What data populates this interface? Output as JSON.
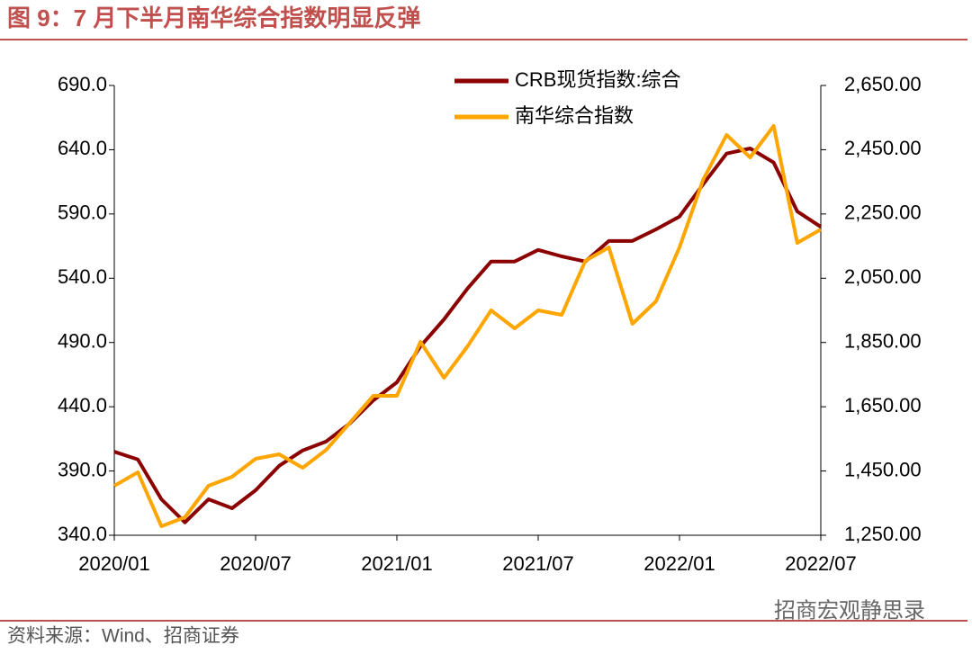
{
  "chart_data": {
    "type": "line",
    "title": "图 9：7 月下半月南华综合指数明显反弹",
    "source": "资料来源：Wind、招商证券",
    "watermark": "招商宏观静思录",
    "categories": [
      "2020/01",
      "2020/02",
      "2020/03",
      "2020/04",
      "2020/05",
      "2020/06",
      "2020/07",
      "2020/08",
      "2020/09",
      "2020/10",
      "2020/11",
      "2020/12",
      "2021/01",
      "2021/02",
      "2021/03",
      "2021/04",
      "2021/05",
      "2021/06",
      "2021/07",
      "2021/08",
      "2021/09",
      "2021/10",
      "2021/11",
      "2021/12",
      "2022/01",
      "2022/02",
      "2022/03",
      "2022/04",
      "2022/05",
      "2022/06",
      "2022/07"
    ],
    "xticks": [
      "2020/01",
      "2020/07",
      "2021/01",
      "2021/07",
      "2022/01",
      "2022/07"
    ],
    "series": [
      {
        "name": "CRB现货指数:综合",
        "color": "#8b0000",
        "axis": "y",
        "values": [
          405,
          399,
          368,
          350,
          368,
          361,
          375,
          394,
          406,
          413,
          427,
          445,
          459,
          487,
          508,
          532,
          553,
          553,
          562,
          557,
          553,
          569,
          569,
          578,
          588,
          613,
          637,
          641,
          630,
          592,
          580
        ]
      },
      {
        "name": "南华综合指数",
        "color": "#ffa500",
        "axis": "y2",
        "values": [
          1404,
          1446,
          1278,
          1306,
          1404,
          1432,
          1488,
          1502,
          1460,
          1516,
          1600,
          1684,
          1684,
          1852,
          1740,
          1838,
          1950,
          1894,
          1950,
          1936,
          2104,
          2146,
          1908,
          1978,
          2146,
          2356,
          2496,
          2426,
          2524,
          2160,
          2202
        ]
      }
    ],
    "ylim": [
      340,
      690
    ],
    "yticks": [
      {
        "value": 340,
        "label": "340.0"
      },
      {
        "value": 390,
        "label": "390.0"
      },
      {
        "value": 440,
        "label": "440.0"
      },
      {
        "value": 490,
        "label": "490.0"
      },
      {
        "value": 540,
        "label": "540.0"
      },
      {
        "value": 590,
        "label": "590.0"
      },
      {
        "value": 640,
        "label": "640.0"
      },
      {
        "value": 690,
        "label": "690.0"
      }
    ],
    "y2lim": [
      1250,
      2650
    ],
    "y2ticks": [
      {
        "value": 1250,
        "label": "1,250.00"
      },
      {
        "value": 1450,
        "label": "1,450.00"
      },
      {
        "value": 1650,
        "label": "1,650.00"
      },
      {
        "value": 1850,
        "label": "1,850.00"
      },
      {
        "value": 2050,
        "label": "2,050.00"
      },
      {
        "value": 2250,
        "label": "2,250.00"
      },
      {
        "value": 2450,
        "label": "2,450.00"
      },
      {
        "value": 2650,
        "label": "2,650.00"
      }
    ],
    "legend": "top"
  }
}
